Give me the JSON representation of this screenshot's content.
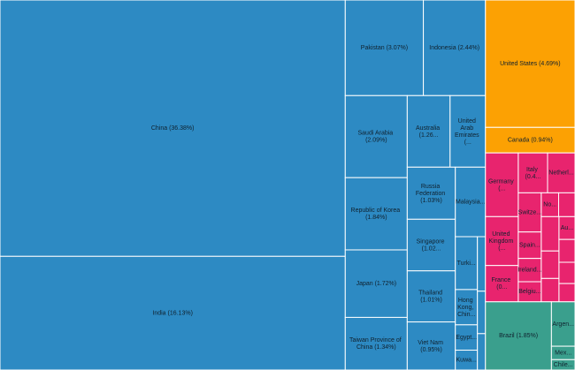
{
  "chart_data": {
    "type": "treemap",
    "series": [
      {
        "color": "#2d8ac3",
        "labels": [
          "China (36.38%)",
          "India (16.13%)",
          "Pakistan (3.07%)",
          "Indonesia (2.44%)",
          "Saudi Arabia (2.09%)",
          "Republic of Korea (1.84%)",
          "Japan (1.72%)",
          "Taiwan Province of China (1.34%)",
          "Australia (1.26...",
          "United Arab Emirates (...",
          "Russia Federation (1.03%)",
          "Singapore (1.02...",
          "Thailand (1.01%)",
          "Viet Nam (0.95%)",
          "Malaysia...",
          "Turki...",
          "Hong Kong, Chin...",
          "Egypt...",
          "Kuwa...",
          null,
          null,
          null
        ],
        "values": [
          36.38,
          16.13,
          3.07,
          2.44,
          2.09,
          1.84,
          1.72,
          1.34,
          1.26,
          1.04,
          1.03,
          1.02,
          1.01,
          0.95,
          0.86,
          0.48,
          0.32,
          0.23,
          0.18,
          0.18,
          0.14,
          0.12
        ]
      },
      {
        "color": "#fca103",
        "labels": [
          "United States (4.69%)",
          "Canada (0.94%)"
        ],
        "values": [
          4.69,
          0.94
        ]
      },
      {
        "color": "#e8246e",
        "labels": [
          "Germany (...",
          "United Kingdom (...",
          "France (0...",
          "Italy (0.4...",
          "Netherl...",
          "Switze...",
          "Spain...",
          "Ireland...",
          "Belgiu...",
          "No...",
          null,
          null,
          null,
          null,
          "Au...",
          null,
          null,
          null
        ],
        "values": [
          0.86,
          0.66,
          0.49,
          0.48,
          0.45,
          0.37,
          0.25,
          0.22,
          0.19,
          0.17,
          0.16,
          0.25,
          0.2,
          0.17,
          0.15,
          0.15,
          0.14,
          0.12
        ]
      },
      {
        "color": "#3a9f8d",
        "labels": [
          "Brazil (1.85%)",
          "Argen...",
          "Mex...",
          "Chile..."
        ],
        "values": [
          1.85,
          0.43,
          0.13,
          0.1
        ]
      }
    ]
  }
}
